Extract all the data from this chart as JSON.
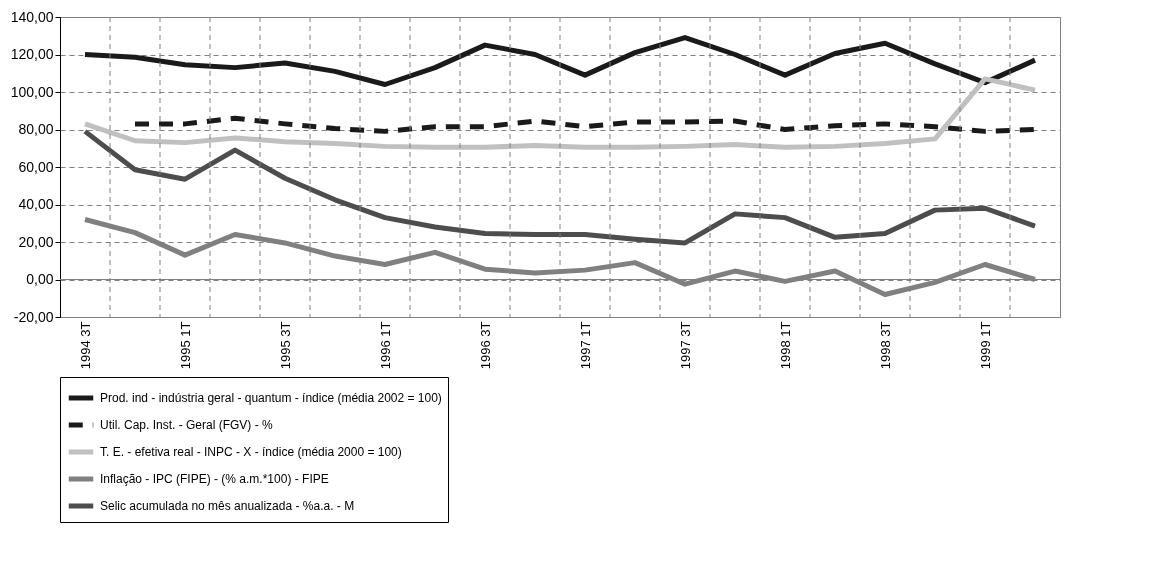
{
  "chart_data": {
    "type": "line",
    "categories": [
      "1994 3T",
      null,
      "1995 1T",
      null,
      "1995 3T",
      null,
      "1996 1T",
      null,
      "1996 3T",
      null,
      "1997 1T",
      null,
      "1997 3T",
      null,
      "1998 1T",
      null,
      "1998 3T",
      null,
      "1999 1T",
      null
    ],
    "series": [
      {
        "name": "Prod. ind - indústria geral - quantum - índice (média 2002 = 100)",
        "color": "#1a1a1a",
        "line_style": "solid",
        "values": [
          120,
          118.5,
          114.5,
          113,
          115.5,
          111,
          104,
          113,
          125,
          120,
          109,
          121,
          129,
          120,
          109,
          120.5,
          126,
          115,
          105,
          117
        ]
      },
      {
        "name": "Util. Cap. Inst. - Geral (FGV) - %",
        "color": "#1a1a1a",
        "line_style": "dashed",
        "values": [
          null,
          83,
          83,
          86,
          83,
          80.5,
          79,
          81.5,
          81.5,
          84.5,
          81.5,
          84,
          84,
          84.5,
          80,
          82,
          83,
          81.5,
          79,
          80
        ]
      },
      {
        "name": "T. E. - efetiva real - INPC - X - índice (média 2000 = 100)",
        "color": "#c0c0c0",
        "line_style": "solid",
        "values": [
          83,
          74,
          73,
          75.5,
          73.5,
          72.5,
          71,
          70.5,
          70.5,
          71.5,
          70.5,
          70.5,
          71,
          72,
          70.5,
          71,
          72.5,
          75,
          107,
          101
        ]
      },
      {
        "name": "Inflação - IPC (FIPE) - (% a.m.*100) - FIPE",
        "color": "#808080",
        "line_style": "solid",
        "values": [
          32,
          25,
          13,
          24,
          19.5,
          12.5,
          8,
          14.5,
          5.5,
          3.5,
          5,
          9,
          -2.5,
          4.5,
          -1,
          4.5,
          -8,
          -1.5,
          8,
          0
        ]
      },
      {
        "name": "Selic acumulada no mês anualizada - %a.a. - M",
        "color": "#4d4d4d",
        "line_style": "solid",
        "values": [
          79,
          58.5,
          53.5,
          69,
          54,
          42.5,
          33,
          28,
          24.5,
          24,
          24,
          21.5,
          19.5,
          35,
          33,
          22.5,
          24.5,
          37,
          38,
          28.5
        ]
      }
    ],
    "ylim": [
      -20,
      140
    ],
    "yticks": [
      {
        "value": -20,
        "label": "-20,00"
      },
      {
        "value": 0,
        "label": "0,00"
      },
      {
        "value": 20,
        "label": "20,00"
      },
      {
        "value": 40,
        "label": "40,00"
      },
      {
        "value": 60,
        "label": "60,00"
      },
      {
        "value": 80,
        "label": "80,00"
      },
      {
        "value": 100,
        "label": "100,00"
      },
      {
        "value": 120,
        "label": "120,00"
      },
      {
        "value": 140,
        "label": "140,00"
      }
    ],
    "grid": true,
    "legend": "bottom",
    "marker": "none"
  }
}
